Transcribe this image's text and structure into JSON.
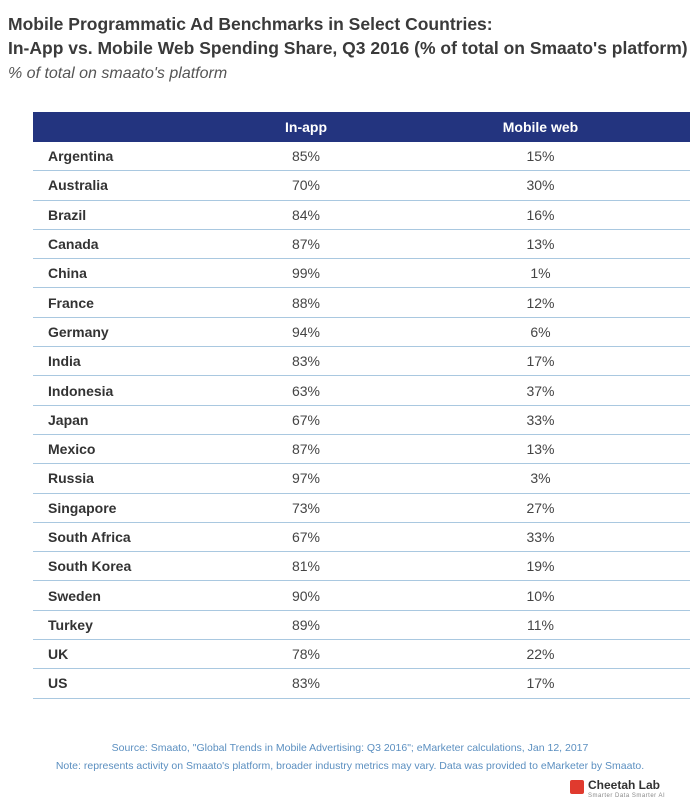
{
  "title_line1": "Mobile Programmatic Ad Benchmarks in Select Countries:",
  "title_line2": "In-App vs. Mobile Web Spending Share, Q3 2016 (% of total on Smaato's platform)",
  "subtitle": "% of total on smaato's platform",
  "chart_data": {
    "type": "table",
    "columns": [
      "",
      "In-app",
      "Mobile web"
    ],
    "rows": [
      {
        "country": "Argentina",
        "inapp": "85%",
        "web": "15%"
      },
      {
        "country": "Australia",
        "inapp": "70%",
        "web": "30%"
      },
      {
        "country": "Brazil",
        "inapp": "84%",
        "web": "16%"
      },
      {
        "country": "Canada",
        "inapp": "87%",
        "web": "13%"
      },
      {
        "country": "China",
        "inapp": "99%",
        "web": "1%"
      },
      {
        "country": "France",
        "inapp": "88%",
        "web": "12%"
      },
      {
        "country": "Germany",
        "inapp": "94%",
        "web": "6%"
      },
      {
        "country": "India",
        "inapp": "83%",
        "web": "17%"
      },
      {
        "country": "Indonesia",
        "inapp": "63%",
        "web": "37%"
      },
      {
        "country": "Japan",
        "inapp": "67%",
        "web": "33%"
      },
      {
        "country": "Mexico",
        "inapp": "87%",
        "web": "13%"
      },
      {
        "country": "Russia",
        "inapp": "97%",
        "web": "3%"
      },
      {
        "country": "Singapore",
        "inapp": "73%",
        "web": "27%"
      },
      {
        "country": "South Africa",
        "inapp": "67%",
        "web": "33%"
      },
      {
        "country": "South Korea",
        "inapp": "81%",
        "web": "19%"
      },
      {
        "country": "Sweden",
        "inapp": "90%",
        "web": "10%"
      },
      {
        "country": "Turkey",
        "inapp": "89%",
        "web": "11%"
      },
      {
        "country": "UK",
        "inapp": "78%",
        "web": "22%"
      },
      {
        "country": "US",
        "inapp": "83%",
        "web": "17%"
      }
    ]
  },
  "source": "Source: Smaato, \"Global Trends in Mobile Advertising: Q3 2016\"; eMarketer calculations, Jan 12, 2017",
  "note": "Note: represents activity on Smaato's platform, broader industry metrics may vary. Data was provided to eMarketer by Smaato.",
  "logo": {
    "name": "Cheetah Lab",
    "tagline": "Smarter Data Smarter AI",
    "icon": "cheetah-lab-logo-icon",
    "color": "#e03a2e"
  },
  "colors": {
    "header_bg": "#23347f",
    "row_divider": "#a9c8e0",
    "footer_text": "#5b8fc0"
  }
}
